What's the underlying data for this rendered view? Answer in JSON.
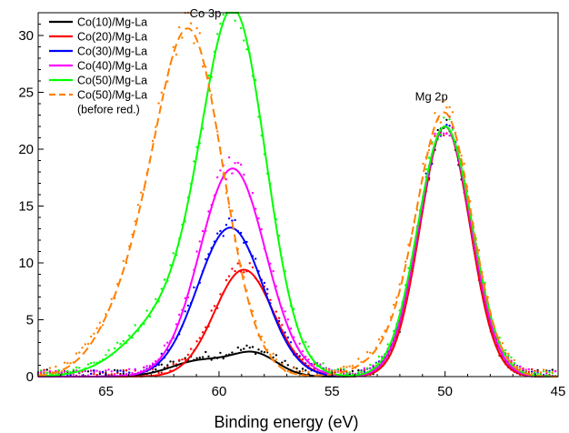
{
  "chart_data": {
    "type": "line",
    "title": "",
    "xlabel": "Binding energy (eV)",
    "ylabel": "",
    "xlim": [
      68,
      45
    ],
    "ylim": [
      0,
      32
    ],
    "x_reversed": true,
    "xticks": [
      65,
      60,
      55,
      50,
      45
    ],
    "yticks": [
      0,
      5,
      10,
      15,
      20,
      25,
      30
    ],
    "grid": false,
    "legend_position": "top-left",
    "annotations": [
      {
        "text": "Co 3p",
        "x": 60.6,
        "y": 31.6
      },
      {
        "text": "Mg 2p",
        "x": 50.6,
        "y": 24.3
      }
    ],
    "series": [
      {
        "name": "Co(10)/Mg-La",
        "color": "#000000",
        "dash": "solid",
        "peaks": [
          {
            "center": 58.4,
            "height": 1.9,
            "width": 1.0
          },
          {
            "center": 60.8,
            "height": 1.4,
            "width": 1.3
          },
          {
            "center": 50.0,
            "height": 22.0,
            "width": 1.1
          }
        ]
      },
      {
        "name": "Co(20)/Mg-La",
        "color": "#ff0000",
        "dash": "solid",
        "peaks": [
          {
            "center": 58.9,
            "height": 9.4,
            "width": 1.3
          },
          {
            "center": 50.0,
            "height": 22.0,
            "width": 1.1
          }
        ]
      },
      {
        "name": "Co(30)/Mg-La",
        "color": "#0000ff",
        "dash": "solid",
        "peaks": [
          {
            "center": 59.5,
            "height": 13.1,
            "width": 1.45
          },
          {
            "center": 50.0,
            "height": 22.0,
            "width": 1.15
          }
        ]
      },
      {
        "name": "Co(40)/Mg-La",
        "color": "#ff00ff",
        "dash": "solid",
        "peaks": [
          {
            "center": 59.4,
            "height": 18.3,
            "width": 1.45
          },
          {
            "center": 50.0,
            "height": 22.0,
            "width": 1.15
          }
        ]
      },
      {
        "name": "Co(50)/Mg-La",
        "color": "#00ff00",
        "dash": "solid",
        "peaks": [
          {
            "center": 59.3,
            "height": 30.3,
            "width": 1.4
          },
          {
            "center": 62.0,
            "height": 5.5,
            "width": 1.9
          },
          {
            "center": 50.0,
            "height": 22.0,
            "width": 1.2
          }
        ]
      },
      {
        "name": "Co(50)/Mg-La\n(before red.)",
        "color": "#ff8000",
        "dash": "dashed",
        "peaks": [
          {
            "center": 61.3,
            "height": 29.8,
            "width": 1.5
          },
          {
            "center": 64.0,
            "height": 5.0,
            "width": 1.4
          },
          {
            "center": 50.0,
            "height": 22.5,
            "width": 1.2
          },
          {
            "center": 52.0,
            "height": 2.0,
            "width": 1.4
          }
        ]
      }
    ]
  }
}
